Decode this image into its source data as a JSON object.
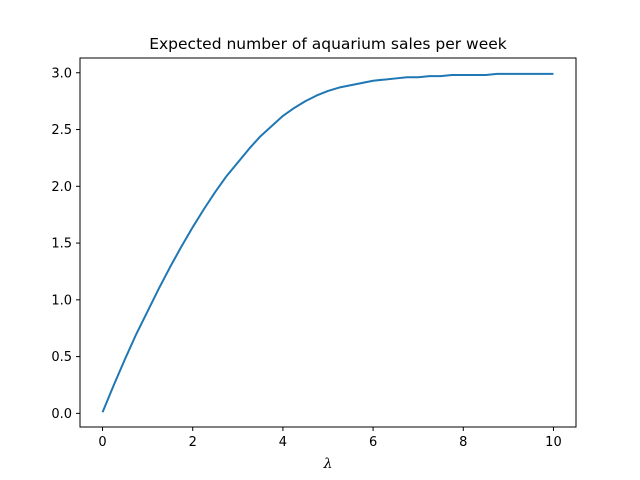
{
  "chart_data": {
    "type": "line",
    "title": "Expected number of aquarium sales per week",
    "xlabel": "λ",
    "ylabel": "",
    "xlim": [
      -0.5,
      10.5
    ],
    "ylim": [
      -0.12,
      3.13
    ],
    "xticks": [
      0,
      2,
      4,
      6,
      8,
      10
    ],
    "xtick_labels": [
      "0",
      "2",
      "4",
      "6",
      "8",
      "10"
    ],
    "yticks": [
      0.0,
      0.5,
      1.0,
      1.5,
      2.0,
      2.5,
      3.0
    ],
    "ytick_labels": [
      "0.0",
      "0.5",
      "1.0",
      "1.5",
      "2.0",
      "2.5",
      "3.0"
    ],
    "grid": false,
    "series": [
      {
        "color": "#1f77b4",
        "x": [
          0.0,
          0.25,
          0.5,
          0.75,
          1.0,
          1.25,
          1.5,
          1.75,
          2.0,
          2.25,
          2.5,
          2.75,
          3.0,
          3.25,
          3.5,
          3.75,
          4.0,
          4.25,
          4.5,
          4.75,
          5.0,
          5.25,
          5.5,
          5.75,
          6.0,
          6.25,
          6.5,
          6.75,
          7.0,
          7.25,
          7.5,
          7.75,
          8.0,
          8.25,
          8.5,
          8.75,
          9.0,
          9.25,
          9.5,
          9.75,
          10.0
        ],
        "y": [
          0.01,
          0.25,
          0.48,
          0.7,
          0.9,
          1.1,
          1.29,
          1.47,
          1.64,
          1.8,
          1.95,
          2.09,
          2.21,
          2.33,
          2.44,
          2.53,
          2.62,
          2.69,
          2.75,
          2.8,
          2.84,
          2.87,
          2.89,
          2.91,
          2.93,
          2.94,
          2.95,
          2.96,
          2.96,
          2.97,
          2.97,
          2.98,
          2.98,
          2.98,
          2.98,
          2.99,
          2.99,
          2.99,
          2.99,
          2.99,
          2.99
        ]
      }
    ]
  }
}
